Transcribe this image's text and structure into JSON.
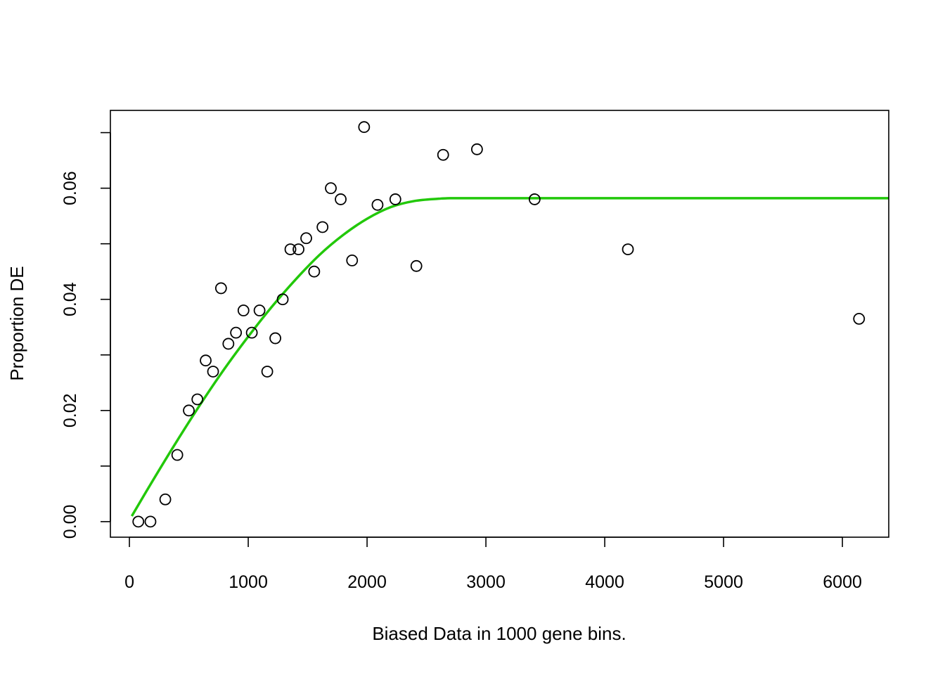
{
  "chart_data": {
    "type": "scatter",
    "title": "",
    "xlabel": "Biased Data in 1000 gene bins.",
    "ylabel": "Proportion DE",
    "xlim": [
      -160,
      6390
    ],
    "ylim": [
      -0.0028,
      0.074
    ],
    "x_ticks": [
      0,
      1000,
      2000,
      3000,
      4000,
      5000,
      6000
    ],
    "y_ticks": [
      0.0,
      0.01,
      0.02,
      0.03,
      0.04,
      0.05,
      0.06,
      0.07
    ],
    "y_tick_labels": [
      "0.00",
      "",
      "0.02",
      "",
      "0.04",
      "",
      "0.06",
      ""
    ],
    "grid": false,
    "colors": {
      "points": "#000000",
      "fit_line": "#22c80a",
      "frame": "#000000"
    },
    "series": [
      {
        "kind": "points",
        "x": [
          75,
          177,
          302,
          403,
          500,
          572,
          642,
          704,
          771,
          833,
          897,
          960,
          1030,
          1095,
          1160,
          1228,
          1290,
          1355,
          1423,
          1488,
          1555,
          1625,
          1695,
          1778,
          1874,
          1975,
          2088,
          2238,
          2415,
          2640,
          2925,
          3410,
          4195,
          6140
        ],
        "y": [
          0.0,
          0.0,
          0.004,
          0.012,
          0.02,
          0.022,
          0.029,
          0.027,
          0.042,
          0.032,
          0.034,
          0.038,
          0.034,
          0.038,
          0.027,
          0.033,
          0.04,
          0.049,
          0.049,
          0.051,
          0.045,
          0.053,
          0.06,
          0.058,
          0.047,
          0.071,
          0.057,
          0.058,
          0.046,
          0.066,
          0.067,
          0.058,
          0.049,
          0.0365
        ]
      },
      {
        "kind": "line",
        "x": [
          20,
          200,
          400,
          600,
          800,
          1000,
          1200,
          1400,
          1600,
          1800,
          2000,
          2200,
          2400,
          2600,
          2700,
          3000,
          4000,
          5000,
          6000,
          6390
        ],
        "y": [
          0.001,
          0.0075,
          0.0145,
          0.0212,
          0.0275,
          0.0333,
          0.0387,
          0.0436,
          0.048,
          0.0516,
          0.0545,
          0.0566,
          0.0577,
          0.0581,
          0.0582,
          0.0582,
          0.0582,
          0.0582,
          0.0582,
          0.0582
        ]
      }
    ]
  }
}
